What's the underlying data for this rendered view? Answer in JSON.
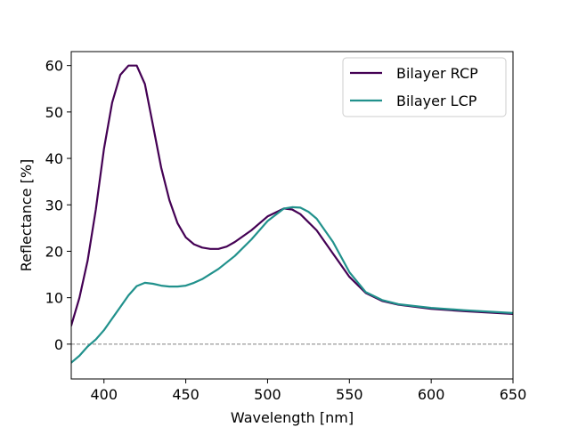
{
  "chart_data": {
    "type": "line",
    "title": "",
    "xlabel": "Wavelength [nm]",
    "ylabel": "Reflectance [%]",
    "xlim": [
      380,
      650
    ],
    "ylim": [
      -7.5,
      63
    ],
    "xticks": [
      400,
      450,
      500,
      550,
      600,
      650
    ],
    "yticks": [
      0,
      10,
      20,
      30,
      40,
      50,
      60
    ],
    "reference_line": {
      "y": 0,
      "style": "dashed",
      "color": "#808080"
    },
    "legend_position": "top-right",
    "grid": false,
    "series": [
      {
        "name": "Bilayer RCP",
        "color": "#440154",
        "x": [
          380,
          385,
          390,
          395,
          400,
          405,
          410,
          415,
          420,
          425,
          430,
          435,
          440,
          445,
          450,
          455,
          460,
          465,
          470,
          475,
          480,
          490,
          500,
          510,
          515,
          520,
          530,
          540,
          550,
          560,
          570,
          580,
          600,
          620,
          650
        ],
        "y": [
          4,
          10,
          18,
          29,
          42,
          52,
          58,
          60,
          60,
          56,
          47,
          38,
          31,
          26,
          23,
          21.5,
          20.8,
          20.5,
          20.5,
          21,
          22,
          24.5,
          27.5,
          29.2,
          29,
          28,
          24.5,
          19.5,
          14.5,
          11,
          9.3,
          8.5,
          7.6,
          7.1,
          6.5
        ]
      },
      {
        "name": "Bilayer LCP",
        "color": "#21918c",
        "x": [
          380,
          385,
          390,
          395,
          400,
          405,
          410,
          415,
          420,
          425,
          430,
          435,
          440,
          445,
          450,
          455,
          460,
          470,
          480,
          490,
          500,
          510,
          515,
          520,
          525,
          530,
          540,
          550,
          560,
          570,
          580,
          600,
          620,
          650
        ],
        "y": [
          -4,
          -2.5,
          -0.5,
          1,
          3,
          5.5,
          8,
          10.5,
          12.5,
          13.2,
          13,
          12.6,
          12.4,
          12.4,
          12.6,
          13.2,
          14,
          16.2,
          19,
          22.5,
          26.5,
          29.2,
          29.5,
          29.4,
          28.5,
          27,
          22,
          15.5,
          11.2,
          9.5,
          8.6,
          7.8,
          7.3,
          6.7
        ]
      }
    ]
  }
}
